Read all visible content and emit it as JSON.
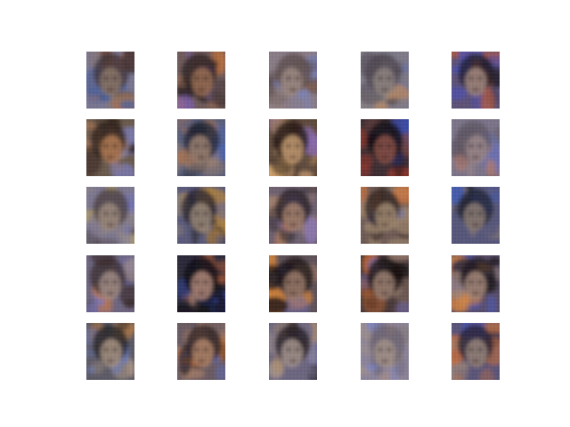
{
  "figure": {
    "background": "#ffffff",
    "rows": 5,
    "cols": 5,
    "tiles": [
      {
        "base": "#7a7690",
        "hair": "#3a2f35",
        "face": "#8a7568",
        "accent_a": "#3d5fa8",
        "accent_b": "#c0692e",
        "tone": "mixed"
      },
      {
        "base": "#6f5a5a",
        "hair": "#2a1f22",
        "face": "#9a6d52",
        "accent_a": "#7b5fb0",
        "accent_b": "#d07530",
        "tone": "warm"
      },
      {
        "base": "#8a7c86",
        "hair": "#5a4a4a",
        "face": "#9c8a82",
        "accent_a": "#7a84c0",
        "accent_b": "#c98a5a",
        "tone": "muted"
      },
      {
        "base": "#7f7a88",
        "hair": "#4d4650",
        "face": "#8e8480",
        "accent_a": "#5a6db8",
        "accent_b": "#b88a66",
        "tone": "muted"
      },
      {
        "base": "#5d5277",
        "hair": "#1f1a26",
        "face": "#a48a80",
        "accent_a": "#4a4fb6",
        "accent_b": "#b45a3a",
        "tone": "cool"
      },
      {
        "base": "#6a5a4c",
        "hair": "#2a1c16",
        "face": "#b07a55",
        "accent_a": "#7a7ab0",
        "accent_b": "#d9a058",
        "tone": "warm"
      },
      {
        "base": "#5a5f7a",
        "hair": "#222433",
        "face": "#9c8070",
        "accent_a": "#4b66b8",
        "accent_b": "#c07844",
        "tone": "cool"
      },
      {
        "base": "#5f4a3c",
        "hair": "#1f1410",
        "face": "#c49b72",
        "accent_a": "#8a6ab0",
        "accent_b": "#e0b070",
        "tone": "warm"
      },
      {
        "base": "#3e2e33",
        "hair": "#120c10",
        "face": "#8a5046",
        "accent_a": "#3c4ca8",
        "accent_b": "#b83a2a",
        "tone": "dark"
      },
      {
        "base": "#7c7489",
        "hair": "#5e5563",
        "face": "#9a8688",
        "accent_a": "#5e6fba",
        "accent_b": "#b87c6a",
        "tone": "muted"
      },
      {
        "base": "#7e7890",
        "hair": "#4a3e3e",
        "face": "#9c8a7c",
        "accent_a": "#6c72c4",
        "accent_b": "#b5a060",
        "tone": "mixed"
      },
      {
        "base": "#5a5a7a",
        "hair": "#26222e",
        "face": "#9a8878",
        "accent_a": "#4e62b8",
        "accent_b": "#b8873c",
        "tone": "cool"
      },
      {
        "base": "#6f6170",
        "hair": "#241c20",
        "face": "#a6836e",
        "accent_a": "#8a78b8",
        "accent_b": "#d0713a",
        "tone": "warm"
      },
      {
        "base": "#6e5a54",
        "hair": "#2e2220",
        "face": "#a08870",
        "accent_a": "#6e76c0",
        "accent_b": "#d8773a",
        "tone": "warm"
      },
      {
        "base": "#56567a",
        "hair": "#1e2030",
        "face": "#8c7c74",
        "accent_a": "#3e5ab6",
        "accent_b": "#b8703c",
        "tone": "cool"
      },
      {
        "base": "#6e6680",
        "hair": "#3a2c2e",
        "face": "#a08c86",
        "accent_a": "#7a78c2",
        "accent_b": "#d07a3a",
        "tone": "mixed"
      },
      {
        "base": "#2c2a3a",
        "hair": "#0c0a12",
        "face": "#b0887a",
        "accent_a": "#384eb0",
        "accent_b": "#a85a3a",
        "tone": "dark"
      },
      {
        "base": "#5e5258",
        "hair": "#1a1214",
        "face": "#9a7a6a",
        "accent_a": "#6a6ab2",
        "accent_b": "#d8853a",
        "tone": "warm"
      },
      {
        "base": "#4a3a3a",
        "hair": "#140e10",
        "face": "#a08474",
        "accent_a": "#7c70ae",
        "accent_b": "#cc6a2e",
        "tone": "dark"
      },
      {
        "base": "#5a4e6a",
        "hair": "#1e1820",
        "face": "#a78a7a",
        "accent_a": "#4a56b4",
        "accent_b": "#e0883a",
        "tone": "warm"
      },
      {
        "base": "#5c5a66",
        "hair": "#1e1c22",
        "face": "#a89484",
        "accent_a": "#6a7aba",
        "accent_b": "#b07a48",
        "tone": "mixed"
      },
      {
        "base": "#6a5a62",
        "hair": "#2a1e20",
        "face": "#b08468",
        "accent_a": "#5a6cbc",
        "accent_b": "#d47a34",
        "tone": "warm"
      },
      {
        "base": "#6c6680",
        "hair": "#201a22",
        "face": "#a8968e",
        "accent_a": "#5a66b8",
        "accent_b": "#b8905a",
        "tone": "mixed"
      },
      {
        "base": "#8c849a",
        "hair": "#6a6272",
        "face": "#a39288",
        "accent_a": "#7e86c6",
        "accent_b": "#bd9574",
        "tone": "muted"
      },
      {
        "base": "#5a5478",
        "hair": "#201c30",
        "face": "#9a867a",
        "accent_a": "#4554b8",
        "accent_b": "#c8703a",
        "tone": "cool"
      }
    ]
  }
}
